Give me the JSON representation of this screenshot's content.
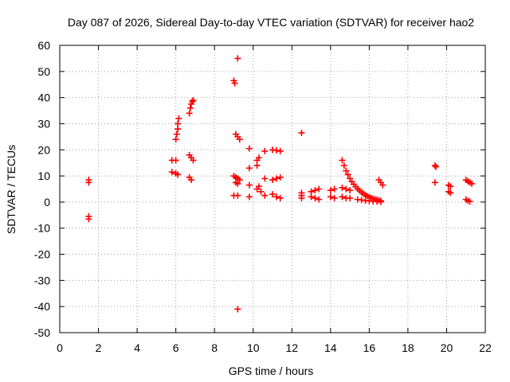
{
  "chart_data": {
    "type": "scatter",
    "title": "Day 087 of 2026, Sidereal Day-to-day VTEC variation (SDTVAR) for receiver hao2",
    "xlabel": "GPS time / hours",
    "ylabel": "SDTVAR / TECUs",
    "xlim": [
      0,
      22
    ],
    "ylim": [
      -50,
      60
    ],
    "xticks": [
      0,
      2,
      4,
      6,
      8,
      10,
      12,
      14,
      16,
      18,
      20,
      22
    ],
    "yticks": [
      -50,
      -40,
      -30,
      -20,
      -10,
      0,
      10,
      20,
      30,
      40,
      50,
      60
    ],
    "grid": true,
    "marker": "+",
    "color": "#ff0000",
    "series": [
      {
        "name": "SDTVAR",
        "points": [
          [
            1.5,
            8.5
          ],
          [
            1.5,
            7.5
          ],
          [
            1.5,
            -5.5
          ],
          [
            1.5,
            -6.5
          ],
          [
            5.8,
            16
          ],
          [
            6.0,
            16
          ],
          [
            5.8,
            11.5
          ],
          [
            6.0,
            11
          ],
          [
            6.1,
            10.5
          ],
          [
            6.0,
            24
          ],
          [
            6.05,
            26
          ],
          [
            6.1,
            28
          ],
          [
            6.1,
            30
          ],
          [
            6.15,
            32
          ],
          [
            6.7,
            34
          ],
          [
            6.75,
            36
          ],
          [
            6.8,
            37.5
          ],
          [
            6.85,
            38.5
          ],
          [
            6.9,
            39
          ],
          [
            6.7,
            18
          ],
          [
            6.8,
            17
          ],
          [
            6.9,
            16
          ],
          [
            6.7,
            9.5
          ],
          [
            6.8,
            8.5
          ],
          [
            9.0,
            46.5
          ],
          [
            9.05,
            45.5
          ],
          [
            9.2,
            55
          ],
          [
            9.1,
            26
          ],
          [
            9.2,
            25
          ],
          [
            9.3,
            24
          ],
          [
            9.0,
            10
          ],
          [
            9.1,
            9.5
          ],
          [
            9.2,
            9
          ],
          [
            9.3,
            8.5
          ],
          [
            9.1,
            7.5
          ],
          [
            9.2,
            7
          ],
          [
            9.0,
            2.5
          ],
          [
            9.2,
            2.5
          ],
          [
            9.2,
            -41
          ],
          [
            9.8,
            20.5
          ],
          [
            9.8,
            13
          ],
          [
            9.8,
            6.5
          ],
          [
            9.8,
            2
          ],
          [
            10.2,
            16
          ],
          [
            10.3,
            17
          ],
          [
            10.2,
            14
          ],
          [
            10.3,
            6
          ],
          [
            10.2,
            5
          ],
          [
            10.4,
            4
          ],
          [
            10.6,
            19.5
          ],
          [
            10.6,
            9
          ],
          [
            10.6,
            2.5
          ],
          [
            11.0,
            20
          ],
          [
            11.2,
            19.8
          ],
          [
            11.4,
            19.5
          ],
          [
            11.0,
            8.5
          ],
          [
            11.2,
            9
          ],
          [
            11.4,
            9.5
          ],
          [
            11.0,
            3
          ],
          [
            11.2,
            2
          ],
          [
            11.4,
            1.5
          ],
          [
            12.5,
            26.5
          ],
          [
            12.5,
            3.5
          ],
          [
            12.5,
            2.5
          ],
          [
            12.5,
            1.5
          ],
          [
            13.0,
            4
          ],
          [
            13.2,
            4.5
          ],
          [
            13.4,
            5
          ],
          [
            13.0,
            2
          ],
          [
            13.2,
            1.5
          ],
          [
            13.4,
            1
          ],
          [
            14.0,
            4.5
          ],
          [
            14.2,
            5
          ],
          [
            14.0,
            2
          ],
          [
            14.2,
            1.5
          ],
          [
            14.6,
            16
          ],
          [
            14.7,
            14
          ],
          [
            14.8,
            12
          ],
          [
            14.9,
            10.5
          ],
          [
            15.0,
            9
          ],
          [
            15.1,
            7.8
          ],
          [
            15.2,
            6.8
          ],
          [
            15.3,
            5.9
          ],
          [
            15.4,
            5.1
          ],
          [
            15.5,
            4.4
          ],
          [
            15.6,
            3.8
          ],
          [
            15.7,
            3.2
          ],
          [
            15.8,
            2.7
          ],
          [
            15.9,
            2.3
          ],
          [
            16.0,
            1.9
          ],
          [
            16.1,
            1.6
          ],
          [
            16.2,
            1.3
          ],
          [
            16.3,
            1.1
          ],
          [
            16.4,
            0.9
          ],
          [
            16.5,
            0.7
          ],
          [
            16.6,
            0.5
          ],
          [
            14.6,
            5.5
          ],
          [
            14.8,
            5
          ],
          [
            15.0,
            4.5
          ],
          [
            14.6,
            2
          ],
          [
            14.8,
            1.5
          ],
          [
            15.0,
            1.5
          ],
          [
            15.4,
            1
          ],
          [
            15.6,
            0.8
          ],
          [
            15.8,
            0.6
          ],
          [
            16.0,
            0.4
          ],
          [
            16.2,
            0.3
          ],
          [
            16.4,
            0.2
          ],
          [
            16.6,
            0.1
          ],
          [
            16.5,
            8.5
          ],
          [
            16.6,
            7.5
          ],
          [
            16.7,
            6.5
          ],
          [
            19.4,
            14
          ],
          [
            19.45,
            13.5
          ],
          [
            19.4,
            7.5
          ],
          [
            20.1,
            6.5
          ],
          [
            20.2,
            6
          ],
          [
            20.1,
            4
          ],
          [
            20.2,
            3.5
          ],
          [
            21.0,
            8.5
          ],
          [
            21.1,
            8
          ],
          [
            21.2,
            7.5
          ],
          [
            21.3,
            7
          ],
          [
            21.0,
            1
          ],
          [
            21.1,
            0.5
          ],
          [
            21.2,
            0.2
          ]
        ]
      }
    ]
  }
}
